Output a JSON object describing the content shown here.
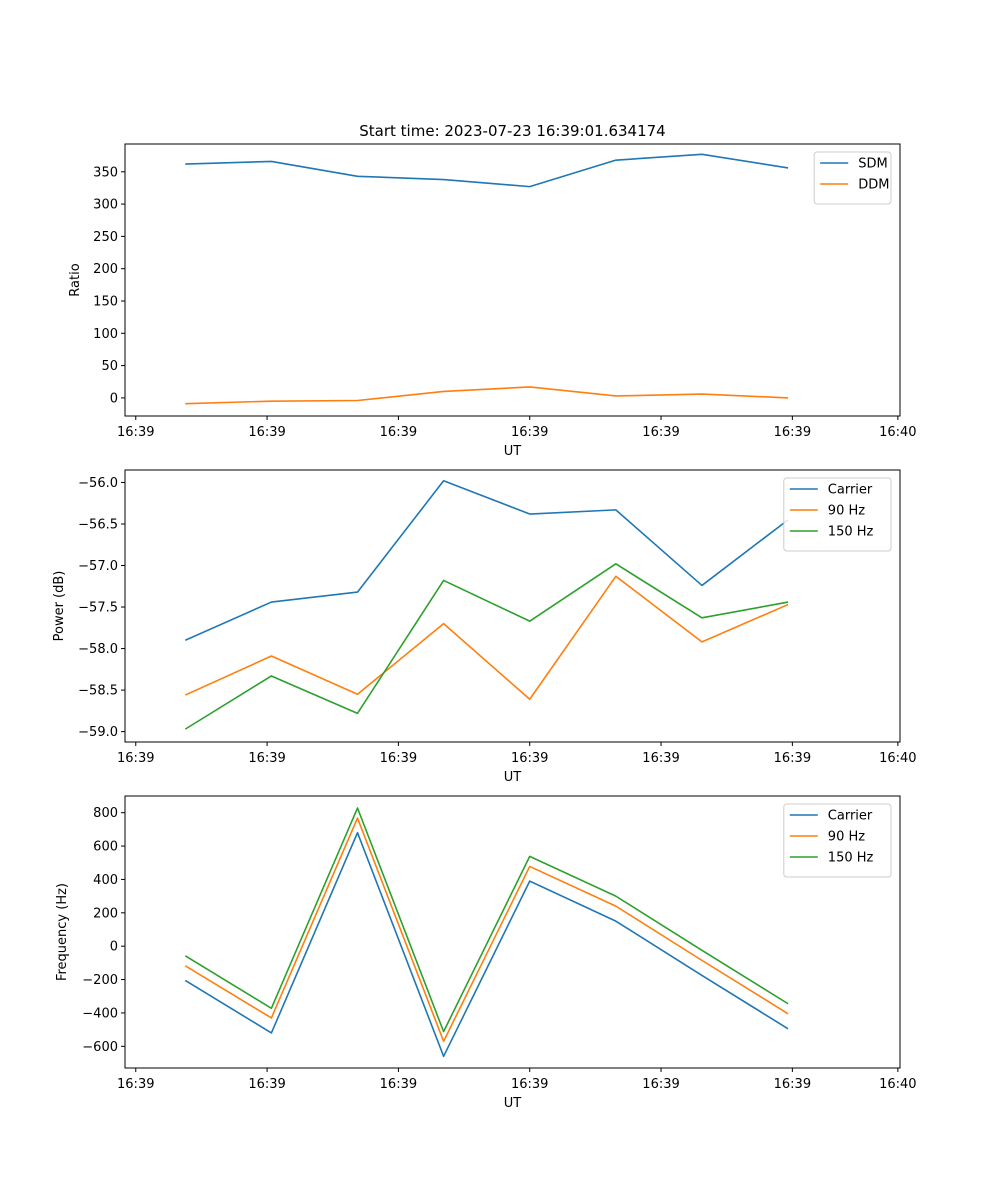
{
  "figure_title": "Start time: 2023-07-23 16:39:01.634174",
  "chart_data": [
    {
      "type": "line",
      "title": "Start time: 2023-07-23 16:39:01.634174",
      "xlabel": "UT",
      "ylabel": "Ratio",
      "x_tick_labels": [
        "16:39",
        "16:39",
        "16:39",
        "16:39",
        "16:39",
        "16:39",
        "16:40"
      ],
      "x": [
        1,
        2,
        3,
        4,
        5,
        6,
        7,
        8
      ],
      "xlim": [
        0.3,
        9.3
      ],
      "ylim": [
        -28,
        393
      ],
      "y_ticks": [
        0,
        50,
        100,
        150,
        200,
        250,
        300,
        350
      ],
      "y_tick_labels": [
        "0",
        "50",
        "100",
        "150",
        "200",
        "250",
        "300",
        "350"
      ],
      "legend_position": "top-right",
      "series": [
        {
          "name": "SDM",
          "color": "#1f77b4",
          "values": [
            362,
            366,
            343,
            338,
            327,
            368,
            377,
            356
          ]
        },
        {
          "name": "DDM",
          "color": "#ff7f0e",
          "values": [
            -9,
            -5,
            -4,
            10,
            17,
            3,
            6,
            0
          ]
        }
      ]
    },
    {
      "type": "line",
      "xlabel": "UT",
      "ylabel": "Power (dB)",
      "x_tick_labels": [
        "16:39",
        "16:39",
        "16:39",
        "16:39",
        "16:39",
        "16:39",
        "16:40"
      ],
      "x": [
        1,
        2,
        3,
        4,
        5,
        6,
        7,
        8
      ],
      "xlim": [
        0.3,
        9.3
      ],
      "ylim": [
        -59.125,
        -55.85
      ],
      "y_ticks": [
        -59.0,
        -58.5,
        -58.0,
        -57.5,
        -57.0,
        -56.5,
        -56.0
      ],
      "y_tick_labels": [
        "−59.0",
        "−58.5",
        "−58.0",
        "−57.5",
        "−57.0",
        "−56.5",
        "−56.0"
      ],
      "legend_position": "top-right",
      "series": [
        {
          "name": "Carrier",
          "color": "#1f77b4",
          "values": [
            -57.9,
            -57.44,
            -57.32,
            -55.98,
            -56.38,
            -56.33,
            -57.24,
            -56.45
          ]
        },
        {
          "name": "90 Hz",
          "color": "#ff7f0e",
          "values": [
            -58.56,
            -58.09,
            -58.55,
            -57.7,
            -58.61,
            -57.13,
            -57.92,
            -57.47
          ]
        },
        {
          "name": "150 Hz",
          "color": "#2ca02c",
          "values": [
            -58.97,
            -58.33,
            -58.78,
            -57.18,
            -57.67,
            -56.98,
            -57.63,
            -57.44
          ]
        }
      ]
    },
    {
      "type": "line",
      "xlabel": "UT",
      "ylabel": "Frequency (Hz)",
      "x_tick_labels": [
        "16:39",
        "16:39",
        "16:39",
        "16:39",
        "16:39",
        "16:39",
        "16:40"
      ],
      "x": [
        1,
        2,
        3,
        4,
        5,
        6,
        7,
        8
      ],
      "xlim": [
        0.3,
        9.3
      ],
      "ylim": [
        -730,
        900
      ],
      "y_ticks": [
        -600,
        -400,
        -200,
        0,
        200,
        400,
        600,
        800
      ],
      "y_tick_labels": [
        "−600",
        "−400",
        "−200",
        "0",
        "200",
        "400",
        "600",
        "800"
      ],
      "legend_position": "top-right",
      "series": [
        {
          "name": "Carrier",
          "color": "#1f77b4",
          "values": [
            -205,
            -520,
            680,
            -660,
            390,
            150,
            -175,
            -495
          ]
        },
        {
          "name": "90 Hz",
          "color": "#ff7f0e",
          "values": [
            -118,
            -430,
            768,
            -570,
            478,
            240,
            -85,
            -405
          ]
        },
        {
          "name": "150 Hz",
          "color": "#2ca02c",
          "values": [
            -58,
            -372,
            828,
            -512,
            538,
            300,
            -25,
            -345
          ]
        }
      ]
    }
  ]
}
